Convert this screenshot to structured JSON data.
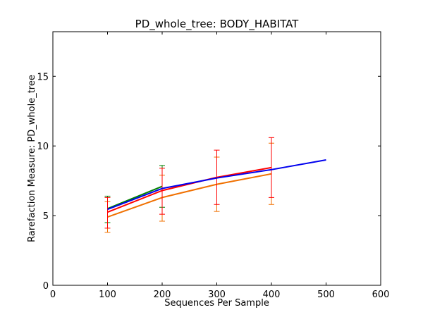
{
  "chart_data": {
    "type": "line",
    "title": "PD_whole_tree: BODY_HABITAT",
    "xlabel": "Sequences Per Sample",
    "ylabel": "Rarefaction Measure: PD_whole_tree",
    "xlim": [
      0,
      600
    ],
    "ylim": [
      0,
      18.2
    ],
    "xticks": [
      "0",
      "100",
      "200",
      "300",
      "400",
      "500",
      "600"
    ],
    "yticks": [
      "0",
      "5",
      "10",
      "15"
    ],
    "xtick_values": [
      0,
      100,
      200,
      300,
      400,
      500,
      600
    ],
    "ytick_values": [
      0,
      5,
      10,
      15
    ],
    "grid": false,
    "legend": "none",
    "series": [
      {
        "color": "#008000",
        "points": [
          {
            "x": 100,
            "y": 5.5,
            "lo": 4.5,
            "hi": 6.4
          },
          {
            "x": 200,
            "y": 7.1,
            "lo": 5.6,
            "hi": 8.6
          }
        ]
      },
      {
        "color": "#f07000",
        "points": [
          {
            "x": 100,
            "y": 4.9,
            "lo": 3.8,
            "hi": 6.0
          },
          {
            "x": 200,
            "y": 6.3,
            "lo": 4.6,
            "hi": 7.9
          },
          {
            "x": 300,
            "y": 7.25,
            "lo": 5.3,
            "hi": 9.2
          },
          {
            "x": 400,
            "y": 8.0,
            "lo": 5.8,
            "hi": 10.2
          }
        ]
      },
      {
        "color": "#ff0000",
        "points": [
          {
            "x": 100,
            "y": 5.25,
            "lo": 4.1,
            "hi": 6.3
          },
          {
            "x": 200,
            "y": 6.8,
            "lo": 5.1,
            "hi": 8.4
          },
          {
            "x": 300,
            "y": 7.75,
            "lo": 5.8,
            "hi": 9.7
          },
          {
            "x": 400,
            "y": 8.45,
            "lo": 6.3,
            "hi": 10.6
          }
        ]
      },
      {
        "color": "#0000ee",
        "points": [
          {
            "x": 100,
            "y": 5.45
          },
          {
            "x": 200,
            "y": 6.95
          },
          {
            "x": 300,
            "y": 7.7
          },
          {
            "x": 400,
            "y": 8.3
          },
          {
            "x": 500,
            "y": 9.0
          }
        ]
      }
    ]
  }
}
